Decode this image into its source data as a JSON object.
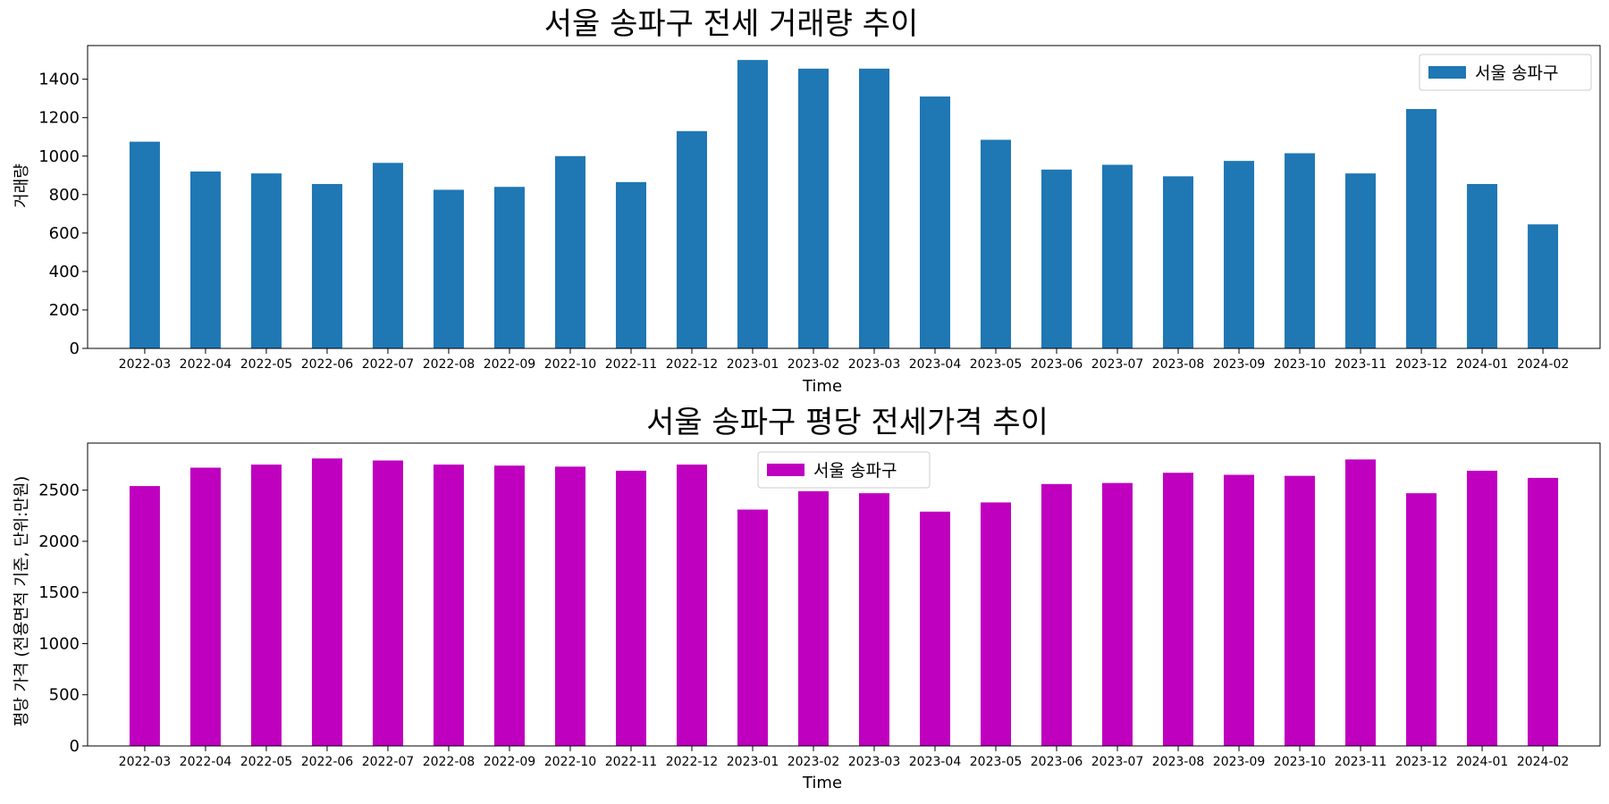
{
  "chart_data": [
    {
      "type": "bar",
      "title": "서울 송파구 전세 거래량 추이",
      "xlabel": "Time",
      "ylabel": "거래량",
      "ylim": [
        0,
        1575
      ],
      "yticks": [
        0,
        200,
        400,
        600,
        800,
        1000,
        1200,
        1400
      ],
      "legend": "top-right",
      "color": "#1f77b4",
      "categories": [
        "2022-03",
        "2022-04",
        "2022-05",
        "2022-06",
        "2022-07",
        "2022-08",
        "2022-09",
        "2022-10",
        "2022-11",
        "2022-12",
        "2023-01",
        "2023-02",
        "2023-03",
        "2023-04",
        "2023-05",
        "2023-06",
        "2023-07",
        "2023-08",
        "2023-09",
        "2023-10",
        "2023-11",
        "2023-12",
        "2024-01",
        "2024-02"
      ],
      "series": [
        {
          "name": "서울 송파구",
          "values": [
            1075,
            920,
            910,
            855,
            965,
            825,
            840,
            1000,
            865,
            1130,
            1500,
            1455,
            1455,
            1310,
            1085,
            930,
            955,
            895,
            975,
            1015,
            910,
            1245,
            855,
            645
          ]
        }
      ]
    },
    {
      "type": "bar",
      "title": "서울 송파구 평당 전세가격 추이",
      "xlabel": "Time",
      "ylabel": "평당 가격 (전용면적 기준, 단위:만원)",
      "ylim": [
        0,
        2960
      ],
      "yticks": [
        0,
        500,
        1000,
        1500,
        2000,
        2500
      ],
      "legend": "top-center",
      "color": "#bf00bf",
      "categories": [
        "2022-03",
        "2022-04",
        "2022-05",
        "2022-06",
        "2022-07",
        "2022-08",
        "2022-09",
        "2022-10",
        "2022-11",
        "2022-12",
        "2023-01",
        "2023-02",
        "2023-03",
        "2023-04",
        "2023-05",
        "2023-06",
        "2023-07",
        "2023-08",
        "2023-09",
        "2023-10",
        "2023-11",
        "2023-12",
        "2024-01",
        "2024-02"
      ],
      "series": [
        {
          "name": "서울 송파구",
          "values": [
            2540,
            2720,
            2750,
            2810,
            2790,
            2750,
            2740,
            2730,
            2690,
            2750,
            2310,
            2490,
            2470,
            2290,
            2380,
            2560,
            2570,
            2670,
            2650,
            2640,
            2800,
            2470,
            2690,
            2620
          ]
        }
      ]
    }
  ]
}
